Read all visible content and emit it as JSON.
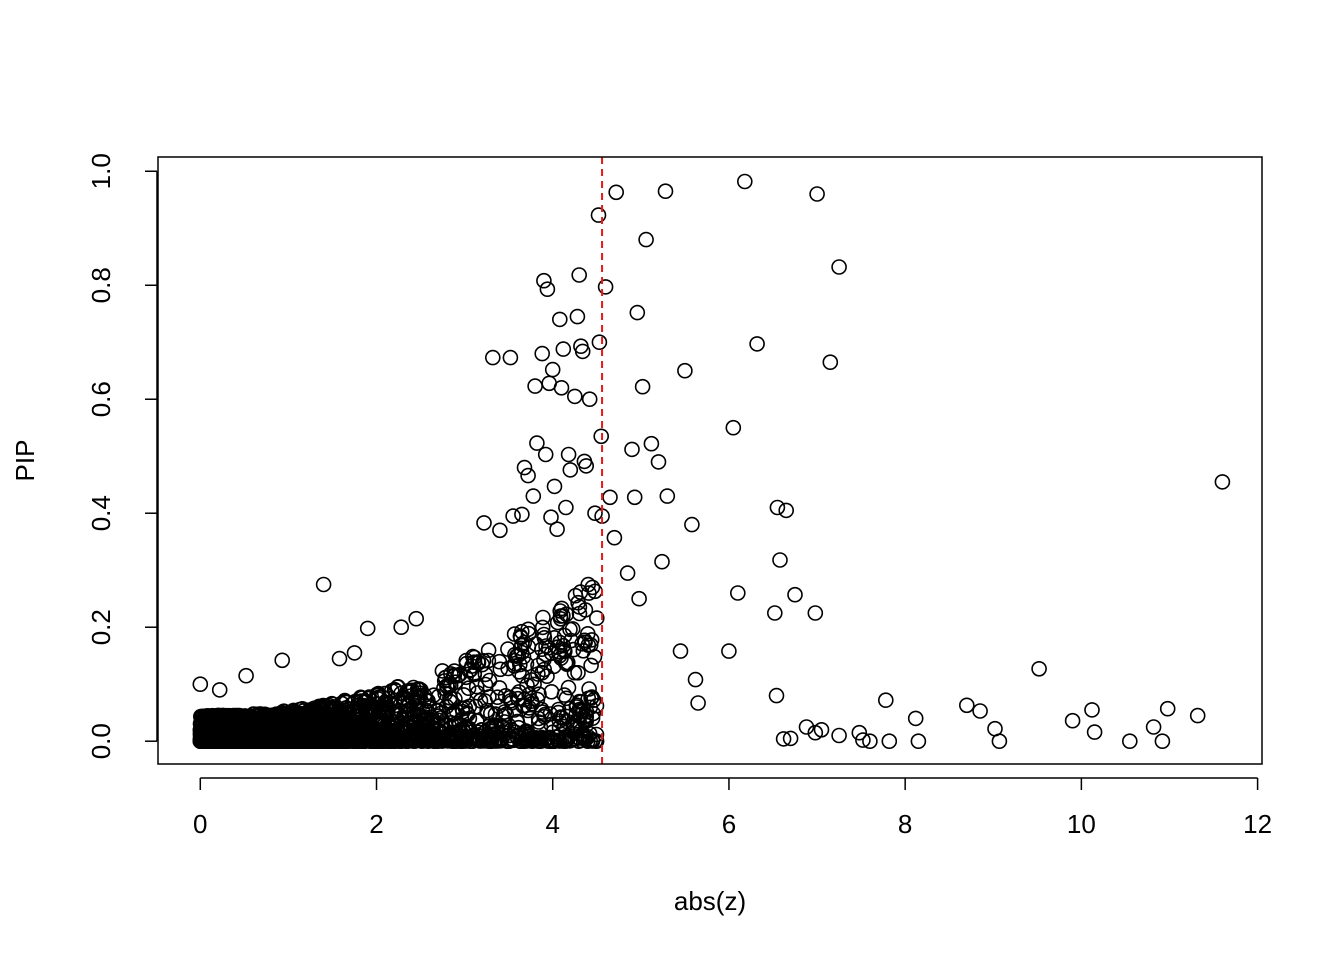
{
  "chart_data": {
    "type": "scatter",
    "title": "",
    "xlabel": "abs(z)",
    "ylabel": "PIP",
    "xlim": [
      -0.48,
      12.05
    ],
    "ylim": [
      -0.04,
      1.025
    ],
    "x_ticks": [
      0,
      2,
      4,
      6,
      8,
      10,
      12
    ],
    "y_ticks": [
      0.0,
      0.2,
      0.4,
      0.6,
      0.8,
      1.0
    ],
    "x_tick_labels": [
      "0",
      "2",
      "4",
      "6",
      "8",
      "10",
      "12"
    ],
    "y_tick_labels": [
      "0.0",
      "0.2",
      "0.4",
      "0.6",
      "0.8",
      "1.0"
    ],
    "grid": false,
    "reference_line": {
      "orientation": "vertical",
      "x": 4.56,
      "color": "#e31a1c",
      "style": "dashed"
    },
    "marker": {
      "shape": "open-circle",
      "color": "#000000"
    },
    "dense_cloud": {
      "description_count": 3000,
      "note": "dense mass of points near 0 increasing in spread with abs(z) up to ~4.5"
    },
    "series": [
      {
        "points": [
          [
            0.0,
            0.1
          ],
          [
            0.22,
            0.09
          ],
          [
            0.52,
            0.115
          ],
          [
            0.93,
            0.142
          ],
          [
            1.4,
            0.275
          ],
          [
            1.58,
            0.145
          ],
          [
            1.75,
            0.155
          ],
          [
            1.9,
            0.198
          ],
          [
            2.28,
            0.2
          ],
          [
            2.45,
            0.215
          ],
          [
            3.22,
            0.383
          ],
          [
            3.32,
            0.673
          ],
          [
            3.4,
            0.37
          ],
          [
            3.52,
            0.673
          ],
          [
            3.55,
            0.395
          ],
          [
            3.65,
            0.398
          ],
          [
            3.68,
            0.48
          ],
          [
            3.72,
            0.466
          ],
          [
            3.78,
            0.43
          ],
          [
            3.8,
            0.623
          ],
          [
            3.82,
            0.523
          ],
          [
            3.88,
            0.68
          ],
          [
            3.9,
            0.808
          ],
          [
            3.92,
            0.503
          ],
          [
            3.94,
            0.793
          ],
          [
            3.96,
            0.628
          ],
          [
            3.98,
            0.393
          ],
          [
            4.0,
            0.652
          ],
          [
            4.02,
            0.447
          ],
          [
            4.05,
            0.372
          ],
          [
            4.08,
            0.74
          ],
          [
            4.1,
            0.62
          ],
          [
            4.12,
            0.688
          ],
          [
            4.15,
            0.41
          ],
          [
            4.18,
            0.503
          ],
          [
            4.2,
            0.476
          ],
          [
            4.25,
            0.605
          ],
          [
            4.28,
            0.745
          ],
          [
            4.3,
            0.818
          ],
          [
            4.32,
            0.693
          ],
          [
            4.34,
            0.684
          ],
          [
            4.36,
            0.491
          ],
          [
            4.38,
            0.483
          ],
          [
            4.42,
            0.6
          ],
          [
            4.48,
            0.4
          ],
          [
            4.52,
            0.923
          ],
          [
            4.53,
            0.7
          ],
          [
            4.55,
            0.535
          ],
          [
            4.56,
            0.395
          ],
          [
            4.6,
            0.797
          ],
          [
            4.65,
            0.428
          ],
          [
            4.7,
            0.357
          ],
          [
            4.72,
            0.963
          ],
          [
            4.85,
            0.295
          ],
          [
            4.9,
            0.512
          ],
          [
            4.93,
            0.428
          ],
          [
            4.96,
            0.752
          ],
          [
            4.98,
            0.25
          ],
          [
            5.02,
            0.622
          ],
          [
            5.06,
            0.88
          ],
          [
            5.12,
            0.522
          ],
          [
            5.2,
            0.49
          ],
          [
            5.24,
            0.315
          ],
          [
            5.28,
            0.965
          ],
          [
            5.3,
            0.43
          ],
          [
            5.45,
            0.158
          ],
          [
            5.5,
            0.65
          ],
          [
            5.58,
            0.38
          ],
          [
            5.62,
            0.108
          ],
          [
            5.65,
            0.067
          ],
          [
            6.0,
            0.158
          ],
          [
            6.05,
            0.55
          ],
          [
            6.1,
            0.26
          ],
          [
            6.18,
            0.982
          ],
          [
            6.32,
            0.697
          ],
          [
            6.52,
            0.225
          ],
          [
            6.54,
            0.08
          ],
          [
            6.55,
            0.41
          ],
          [
            6.58,
            0.318
          ],
          [
            6.62,
            0.004
          ],
          [
            6.65,
            0.405
          ],
          [
            6.7,
            0.005
          ],
          [
            6.75,
            0.257
          ],
          [
            6.88,
            0.025
          ],
          [
            6.98,
            0.225
          ],
          [
            6.98,
            0.015
          ],
          [
            7.0,
            0.96
          ],
          [
            7.05,
            0.02
          ],
          [
            7.15,
            0.665
          ],
          [
            7.25,
            0.832
          ],
          [
            7.25,
            0.01
          ],
          [
            7.48,
            0.015
          ],
          [
            7.52,
            0.002
          ],
          [
            7.6,
            0.0
          ],
          [
            7.78,
            0.072
          ],
          [
            7.82,
            0.0
          ],
          [
            8.12,
            0.04
          ],
          [
            8.15,
            0.0
          ],
          [
            8.7,
            0.063
          ],
          [
            8.85,
            0.053
          ],
          [
            9.02,
            0.022
          ],
          [
            9.07,
            0.0
          ],
          [
            9.52,
            0.127
          ],
          [
            9.9,
            0.036
          ],
          [
            10.12,
            0.055
          ],
          [
            10.15,
            0.016
          ],
          [
            10.55,
            0.0
          ],
          [
            10.82,
            0.025
          ],
          [
            10.92,
            0.0
          ],
          [
            10.98,
            0.057
          ],
          [
            11.32,
            0.045
          ],
          [
            11.6,
            0.455
          ]
        ]
      }
    ]
  }
}
